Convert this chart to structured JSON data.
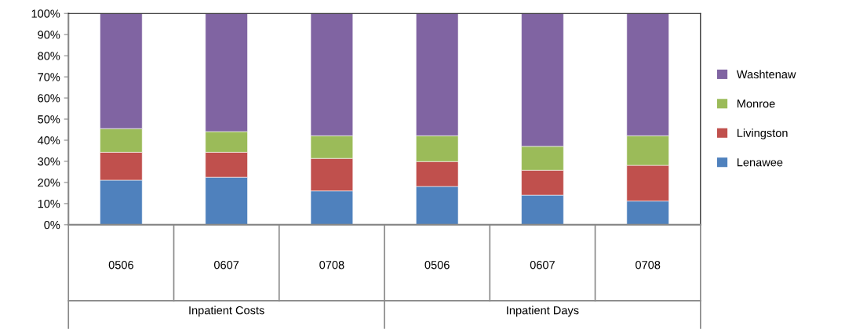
{
  "chart_data": {
    "type": "bar",
    "stacked": true,
    "categories": [
      "0506",
      "0607",
      "0708",
      "0506",
      "0607",
      "0708"
    ],
    "series": [
      {
        "name": "Lenawee",
        "color": "#4f81bd",
        "values": [
          21.1,
          22.5,
          16.0,
          18.1,
          14.0,
          11.2
        ]
      },
      {
        "name": "Livingston",
        "color": "#c0504d",
        "values": [
          13.2,
          11.8,
          15.4,
          11.8,
          11.8,
          16.9
        ]
      },
      {
        "name": "Monroe",
        "color": "#9bbb59",
        "values": [
          11.2,
          9.8,
          10.7,
          12.2,
          11.3,
          14.0
        ]
      },
      {
        "name": "Washtenaw",
        "color": "#8064a2",
        "values": [
          54.5,
          55.9,
          57.9,
          57.9,
          62.9,
          57.9
        ]
      }
    ],
    "ylim": [
      0,
      100
    ],
    "yticks": [
      {
        "value": 0,
        "label": "0%"
      },
      {
        "value": 10,
        "label": "10%"
      },
      {
        "value": 20,
        "label": "20%"
      },
      {
        "value": 30,
        "label": "30%"
      },
      {
        "value": 40,
        "label": "40%"
      },
      {
        "value": 50,
        "label": "50%"
      },
      {
        "value": 60,
        "label": "60%"
      },
      {
        "value": 70,
        "label": "70%"
      },
      {
        "value": 80,
        "label": "80%"
      },
      {
        "value": 90,
        "label": "90%"
      },
      {
        "value": 100,
        "label": "100%"
      }
    ],
    "annotations": [
      "Inpatient Costs",
      "Inpatient Days"
    ],
    "grid": false,
    "legend": "right"
  }
}
